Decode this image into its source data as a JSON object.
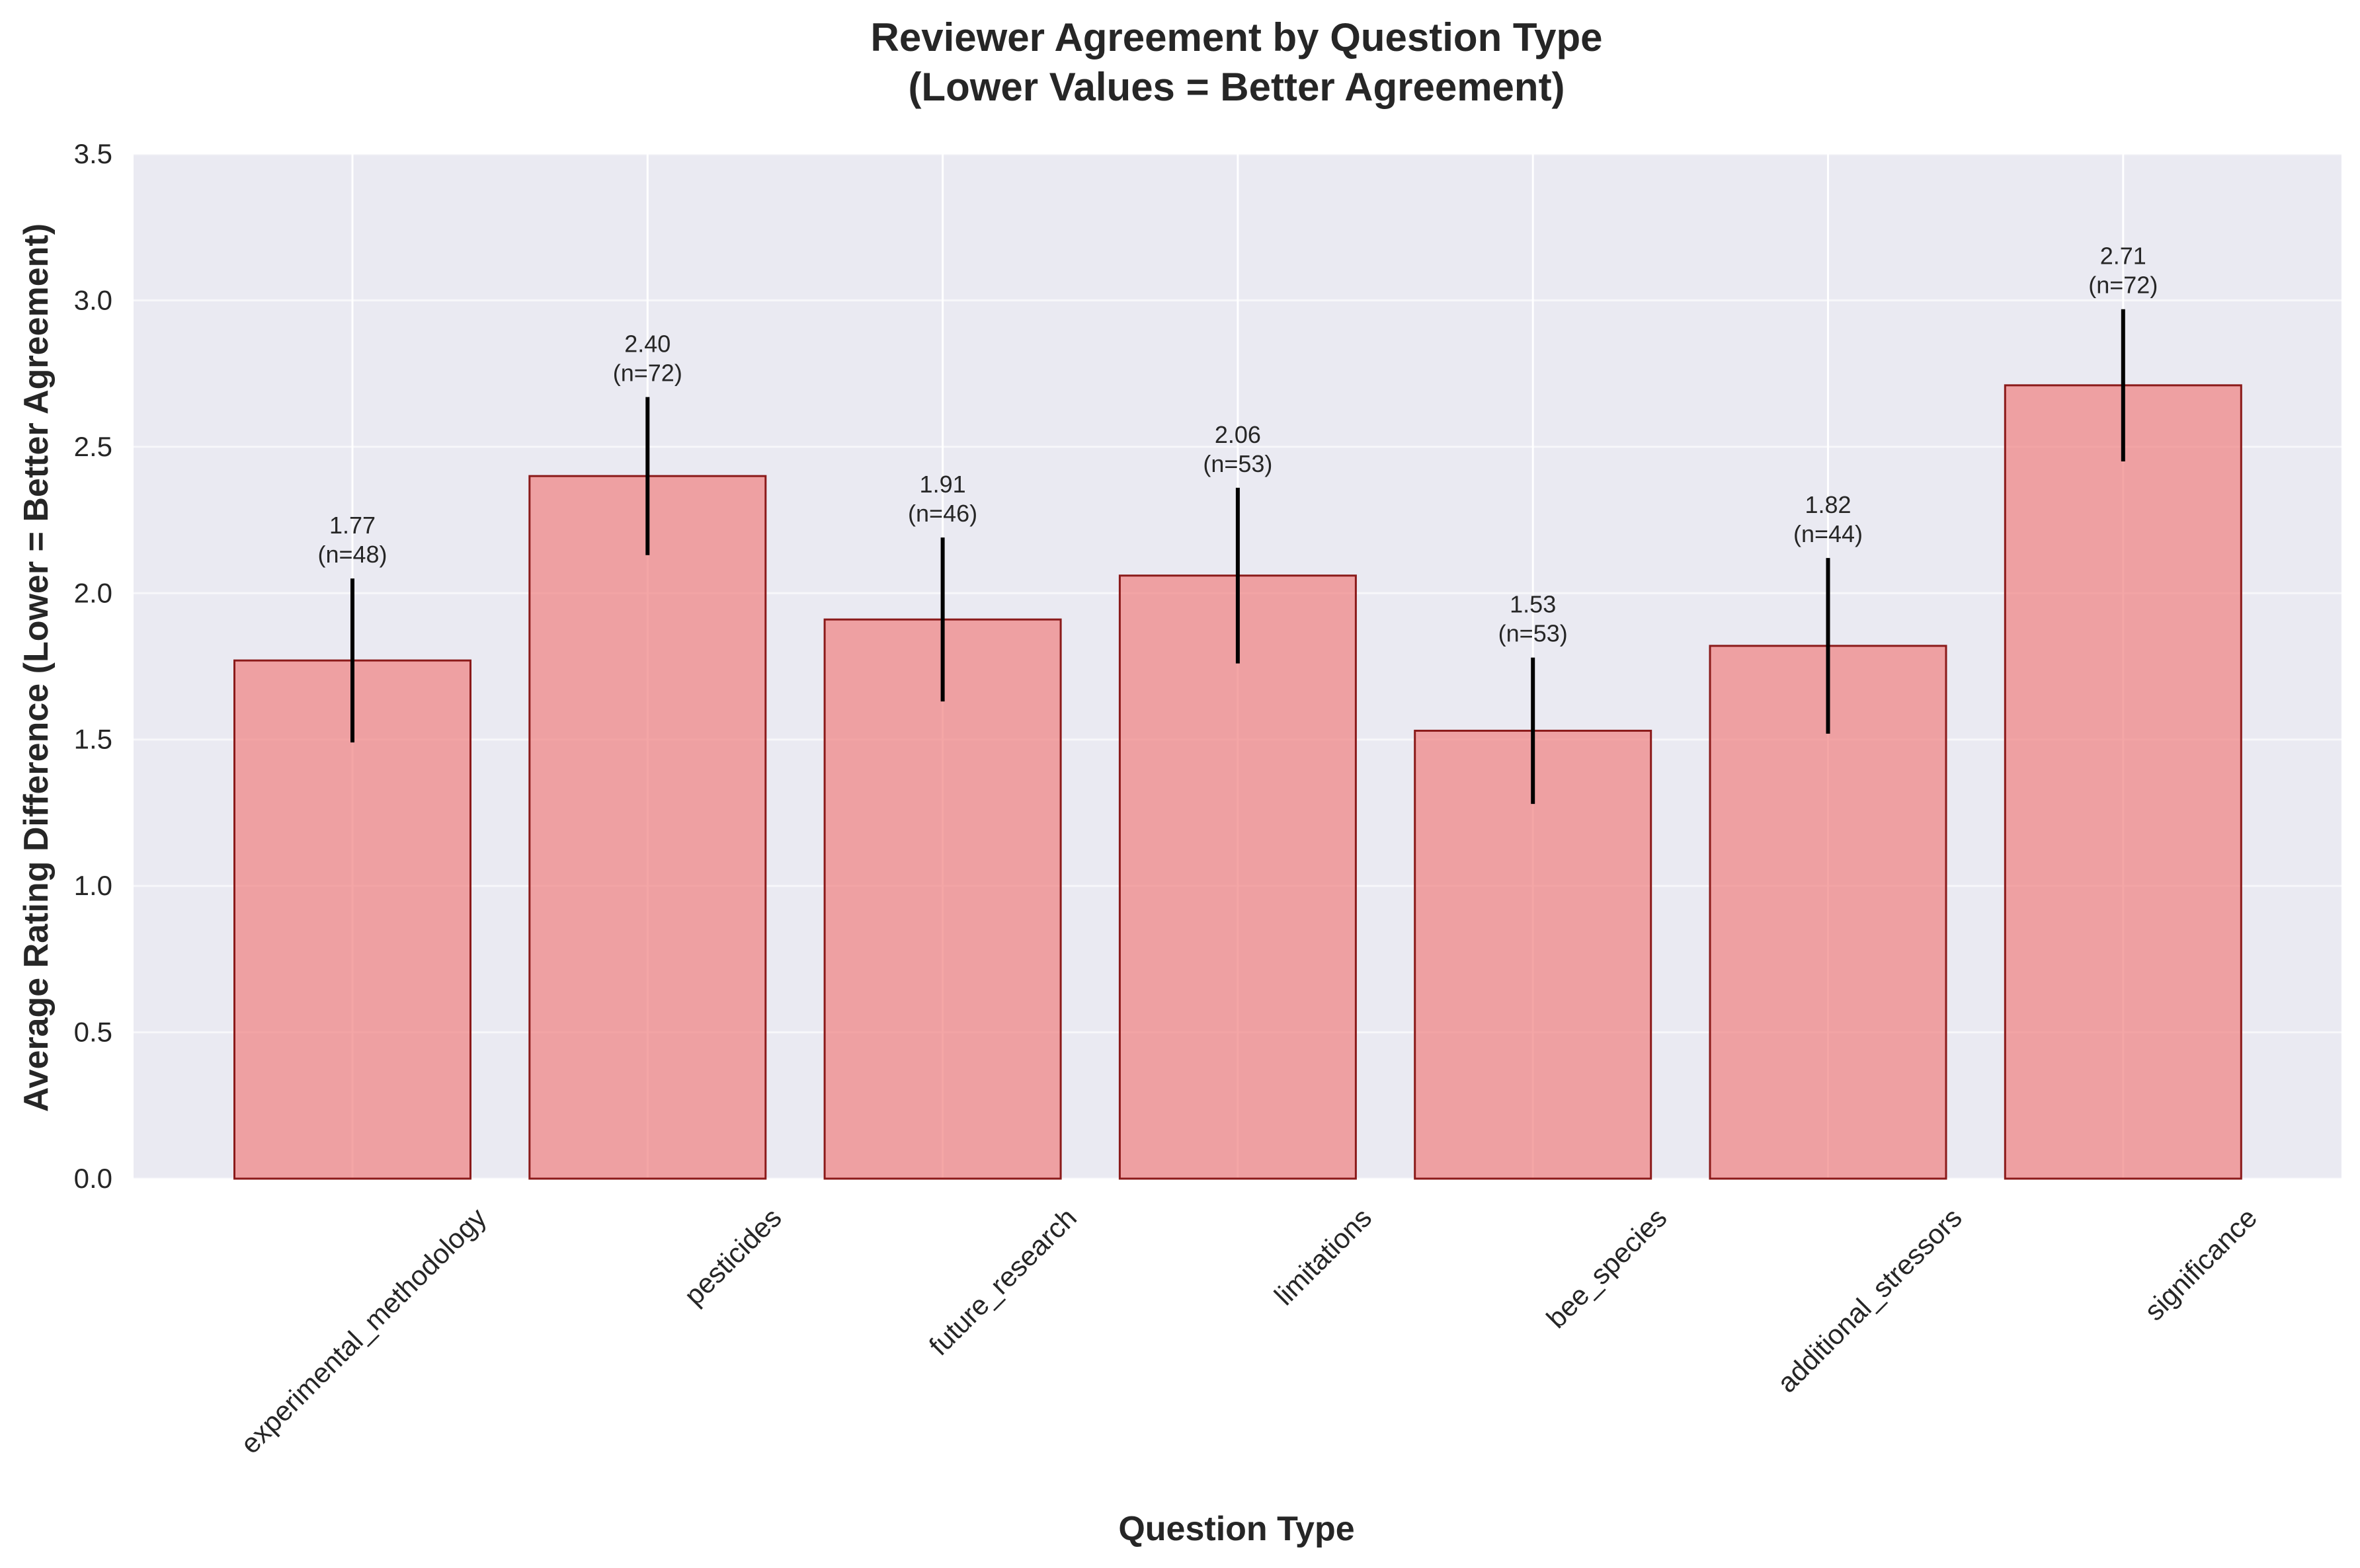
{
  "chart_data": {
    "type": "bar",
    "title_line1": "Reviewer Agreement by Question Type",
    "title_line2": "(Lower Values = Better Agreement)",
    "xlabel": "Question Type",
    "ylabel": "Average Rating Difference (Lower = Better Agreement)",
    "ylim": [
      0,
      3.5
    ],
    "yticks": [
      "0.0",
      "0.5",
      "1.0",
      "1.5",
      "2.0",
      "2.5",
      "3.0",
      "3.5"
    ],
    "categories": [
      "experimental_methodology",
      "pesticides",
      "future_research",
      "limitations",
      "bee_species",
      "additional_stressors",
      "significance"
    ],
    "values": [
      1.77,
      2.4,
      1.91,
      2.06,
      1.53,
      1.82,
      2.71
    ],
    "errors": [
      0.28,
      0.27,
      0.28,
      0.3,
      0.25,
      0.3,
      0.26
    ],
    "value_labels": [
      "1.77",
      "2.40",
      "1.91",
      "2.06",
      "1.53",
      "1.82",
      "2.71"
    ],
    "n_labels": [
      "(n=48)",
      "(n=72)",
      "(n=46)",
      "(n=53)",
      "(n=53)",
      "(n=44)",
      "(n=72)"
    ],
    "grid": true,
    "colors": {
      "bar_fill": "#f08080",
      "bar_edge": "#8b1a1a",
      "error_bar": "#000000",
      "plot_bg": "#eaeaf2",
      "grid": "#ffffff"
    }
  }
}
